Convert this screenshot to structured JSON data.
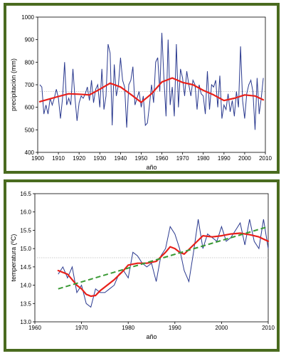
{
  "chart_data": [
    {
      "type": "line",
      "title": "",
      "xlabel": "año",
      "ylabel": "precipitación (mm)",
      "xlim": [
        1900,
        2010
      ],
      "ylim": [
        400,
        1000
      ],
      "xticks": [
        1900,
        1910,
        1920,
        1930,
        1940,
        1950,
        1960,
        1970,
        1980,
        1990,
        2000,
        2010
      ],
      "yticks": [
        400,
        500,
        600,
        700,
        800,
        900,
        1000
      ],
      "reference_line": 670,
      "colors": {
        "observed": "#2b3a8f",
        "smoothed": "#e8201a",
        "reference": "#bbbbbb"
      },
      "series": [
        {
          "style": "thin-line",
          "x": [
            1901,
            1902,
            1903,
            1904,
            1905,
            1906,
            1907,
            1908,
            1909,
            1910,
            1911,
            1912,
            1913,
            1914,
            1915,
            1916,
            1917,
            1918,
            1919,
            1920,
            1921,
            1922,
            1923,
            1924,
            1925,
            1926,
            1927,
            1928,
            1929,
            1930,
            1931,
            1932,
            1933,
            1934,
            1935,
            1936,
            1937,
            1938,
            1939,
            1940,
            1941,
            1942,
            1943,
            1944,
            1945,
            1946,
            1947,
            1948,
            1949,
            1950,
            1951,
            1952,
            1953,
            1954,
            1955,
            1956,
            1957,
            1958,
            1959,
            1960,
            1961,
            1962,
            1963,
            1964,
            1965,
            1966,
            1967,
            1968,
            1969,
            1970,
            1971,
            1972,
            1973,
            1974,
            1975,
            1976,
            1977,
            1978,
            1979,
            1980,
            1981,
            1982,
            1983,
            1984,
            1985,
            1986,
            1987,
            1988,
            1989,
            1990,
            1991,
            1992,
            1993,
            1994,
            1995,
            1996,
            1997,
            1998,
            1999,
            2000,
            2001,
            2002,
            2003,
            2004,
            2005,
            2006,
            2007,
            2008,
            2009
          ],
          "values": [
            700,
            690,
            570,
            610,
            570,
            640,
            610,
            640,
            680,
            640,
            550,
            640,
            800,
            610,
            640,
            610,
            770,
            640,
            540,
            620,
            650,
            640,
            660,
            690,
            630,
            720,
            620,
            680,
            700,
            600,
            770,
            590,
            650,
            880,
            840,
            520,
            790,
            650,
            700,
            820,
            720,
            690,
            510,
            700,
            720,
            780,
            610,
            640,
            670,
            600,
            650,
            520,
            530,
            610,
            700,
            620,
            800,
            820,
            670,
            930,
            720,
            560,
            900,
            610,
            690,
            560,
            880,
            600,
            770,
            730,
            650,
            760,
            700,
            650,
            720,
            700,
            590,
            700,
            660,
            650,
            570,
            760,
            590,
            700,
            690,
            720,
            600,
            740,
            550,
            610,
            590,
            660,
            580,
            630,
            560,
            670,
            600,
            870,
            630,
            550,
            660,
            700,
            720,
            670,
            500,
            730,
            570,
            640,
            730
          ]
        },
        {
          "style": "smoothed",
          "x": [
            1901,
            1905,
            1910,
            1915,
            1920,
            1925,
            1930,
            1935,
            1940,
            1945,
            1950,
            1955,
            1960,
            1965,
            1970,
            1975,
            1980,
            1985,
            1990,
            1995,
            2000,
            2005,
            2009
          ],
          "values": [
            625,
            635,
            648,
            660,
            658,
            655,
            680,
            707,
            690,
            657,
            622,
            660,
            712,
            730,
            710,
            700,
            675,
            655,
            630,
            640,
            655,
            650,
            633
          ]
        }
      ]
    },
    {
      "type": "line",
      "title": "",
      "xlabel": "año",
      "ylabel": "temperatura (ºC)",
      "xlim": [
        1960,
        2010
      ],
      "ylim": [
        13.0,
        16.5
      ],
      "xticks": [
        1960,
        1970,
        1980,
        1990,
        2000,
        2010
      ],
      "yticks": [
        13.0,
        13.5,
        14.0,
        14.5,
        15.0,
        15.5,
        16.0,
        16.5
      ],
      "reference_line": 14.75,
      "colors": {
        "observed": "#2b3a8f",
        "smoothed": "#e8201a",
        "trend": "#3a9a35",
        "reference": "#bbbbbb"
      },
      "series": [
        {
          "style": "thin-line",
          "x": [
            1965,
            1966,
            1967,
            1968,
            1969,
            1970,
            1971,
            1972,
            1973,
            1974,
            1975,
            1976,
            1977,
            1978,
            1979,
            1980,
            1981,
            1982,
            1983,
            1984,
            1985,
            1986,
            1987,
            1988,
            1989,
            1990,
            1991,
            1992,
            1993,
            1994,
            1995,
            1996,
            1997,
            1998,
            1999,
            2000,
            2001,
            2002,
            2003,
            2004,
            2005,
            2006,
            2007,
            2008,
            2009,
            2010
          ],
          "values": [
            14.3,
            14.5,
            14.2,
            14.5,
            13.8,
            14.0,
            13.5,
            13.4,
            13.9,
            13.8,
            13.8,
            13.9,
            14.0,
            14.3,
            14.4,
            14.2,
            14.9,
            14.8,
            14.6,
            14.5,
            14.6,
            14.1,
            14.8,
            15.0,
            15.6,
            15.4,
            15.0,
            14.4,
            14.1,
            14.9,
            15.8,
            15.0,
            15.4,
            15.3,
            15.2,
            15.6,
            15.2,
            15.3,
            15.5,
            15.7,
            15.1,
            15.8,
            15.2,
            15.0,
            15.8,
            15.0
          ]
        },
        {
          "style": "smoothed",
          "x": [
            1965,
            1967,
            1969,
            1970,
            1971,
            1972,
            1973,
            1974,
            1975,
            1977,
            1979,
            1980,
            1982,
            1984,
            1986,
            1988,
            1989,
            1990,
            1991,
            1992,
            1994,
            1996,
            1998,
            2000,
            2002,
            2004,
            2006,
            2008,
            2010
          ],
          "values": [
            14.4,
            14.3,
            14.0,
            13.9,
            13.75,
            13.7,
            13.72,
            13.85,
            13.95,
            14.15,
            14.4,
            14.55,
            14.6,
            14.6,
            14.65,
            14.9,
            15.05,
            15.0,
            14.9,
            14.85,
            15.1,
            15.35,
            15.32,
            15.35,
            15.4,
            15.42,
            15.38,
            15.32,
            15.2
          ]
        },
        {
          "style": "trend",
          "x": [
            1965,
            2010
          ],
          "values": [
            13.9,
            15.6
          ]
        }
      ]
    }
  ]
}
